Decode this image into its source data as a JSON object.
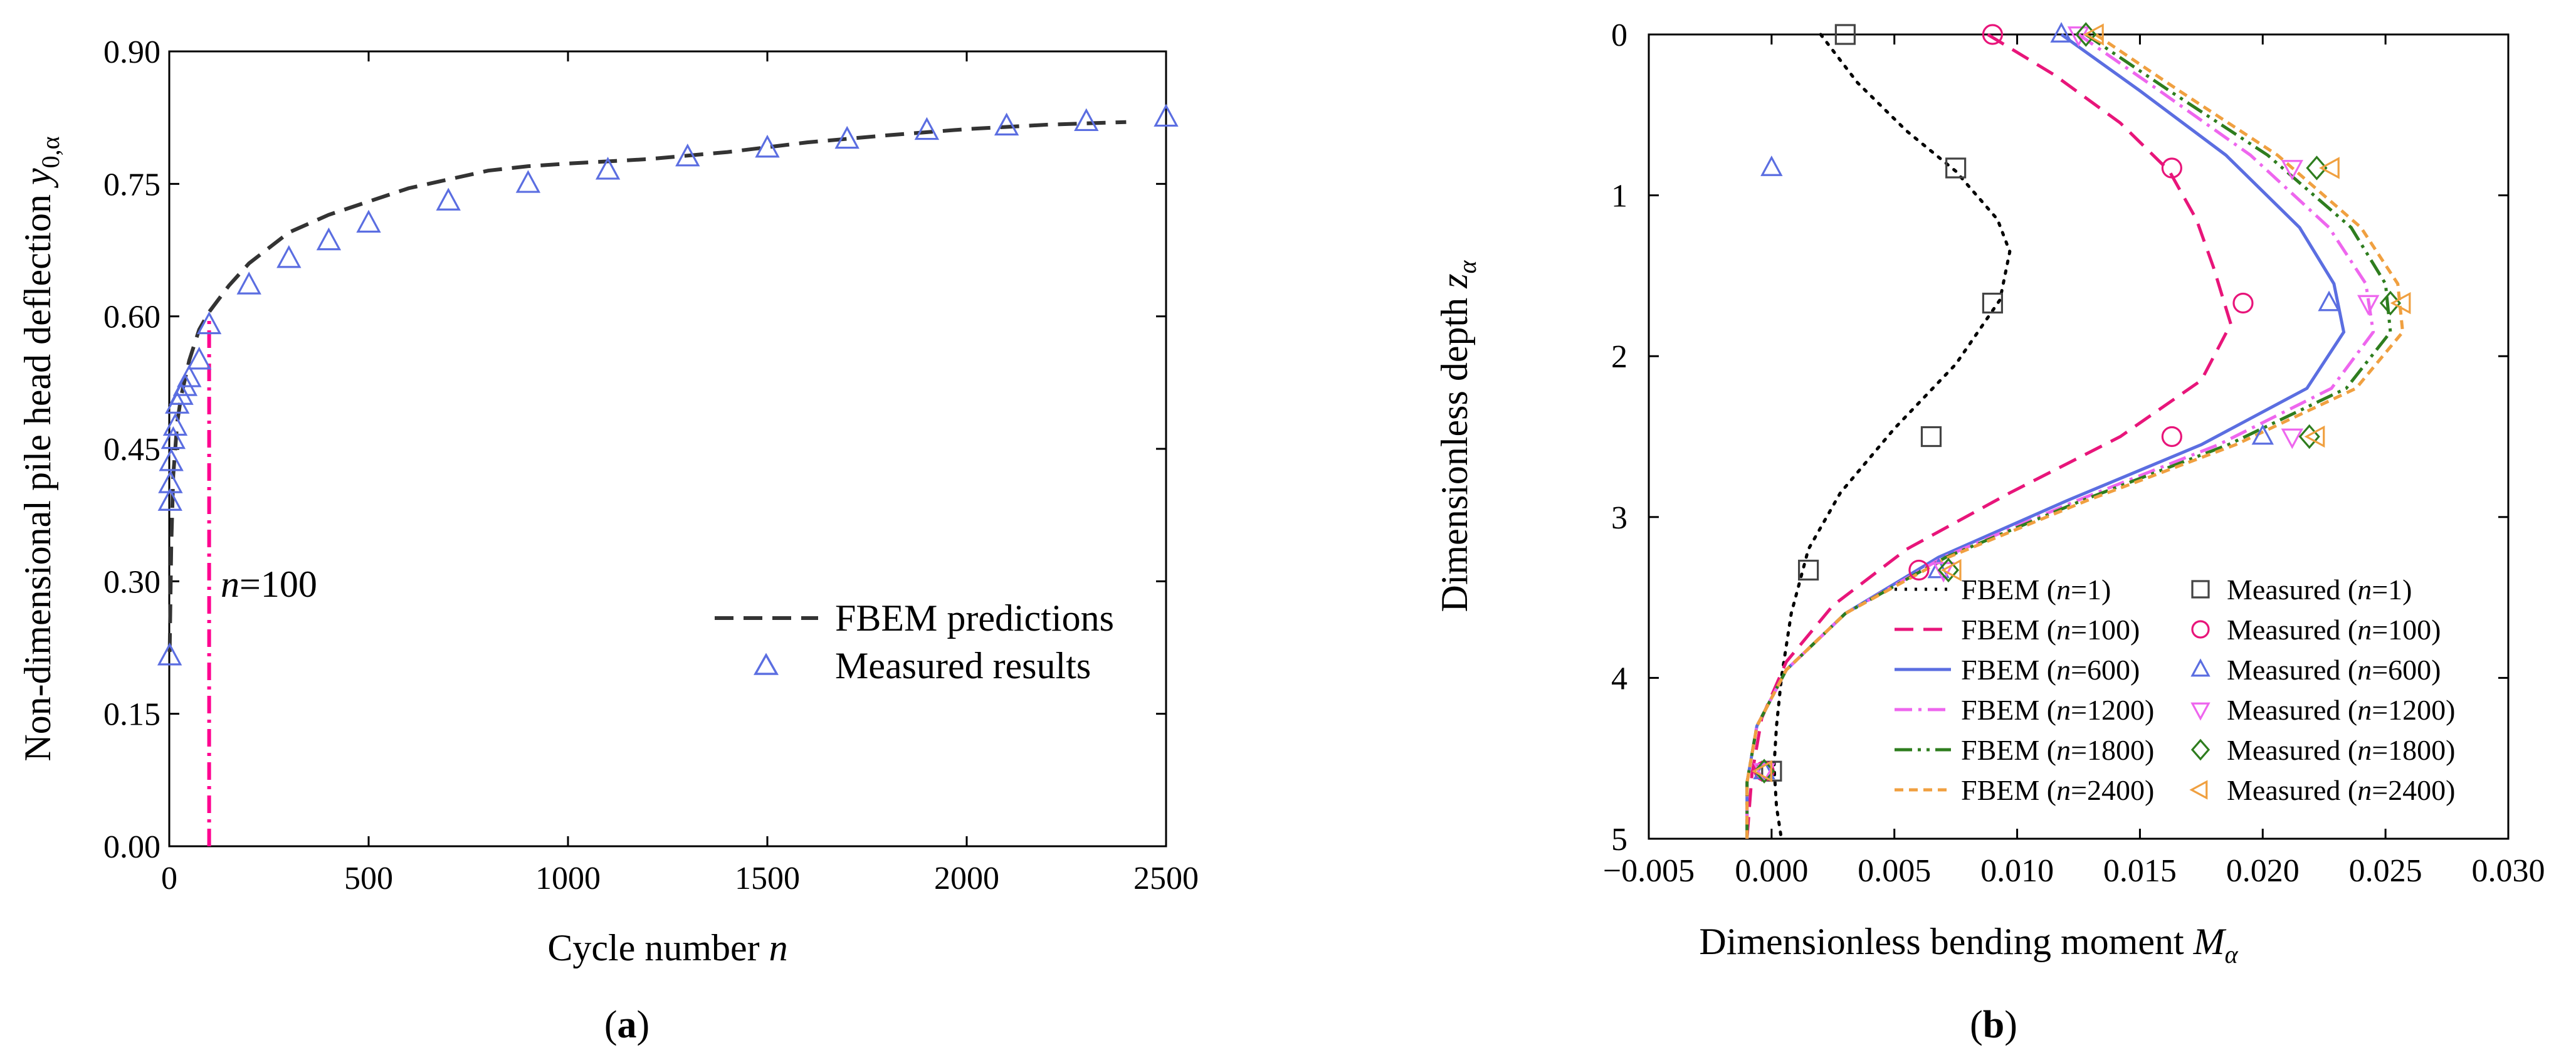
{
  "panel_labels": {
    "a": "(a)",
    "a_open": "(",
    "a_letter": "a",
    "a_close": ")",
    "b": "(b)",
    "b_open": "(",
    "b_letter": "b",
    "b_close": ")"
  },
  "chart_data": [
    {
      "type": "line",
      "panel": "a",
      "title": "",
      "xlabel": "Cycle number n",
      "xlabel_main": "Cycle number ",
      "xlabel_var": "n",
      "ylabel": "Non-dimensional pile head deflection y0,α",
      "ylabel_main": "Non-dimensional pile head deflection ",
      "ylabel_var": "y",
      "ylabel_sub": "0,α",
      "xlim": [
        0,
        2500
      ],
      "ylim": [
        0,
        0.9
      ],
      "xticks": [
        0,
        500,
        1000,
        1500,
        2000,
        2500
      ],
      "xtick_labels": [
        "0",
        "500",
        "1000",
        "1500",
        "2000",
        "2500"
      ],
      "yticks": [
        0,
        0.15,
        0.3,
        0.45,
        0.6,
        0.75,
        0.9
      ],
      "ytick_labels": [
        "0.00",
        "0.15",
        "0.30",
        "0.45",
        "0.60",
        "0.75",
        "0.90"
      ],
      "legend_position": "bottom-right",
      "marker_line": {
        "x": 100,
        "label": "n=100",
        "label_var": "n",
        "label_rest": "=100",
        "color": "#ff0090"
      },
      "series": [
        {
          "name": "FBEM predictions",
          "kind": "line",
          "style": "dashed",
          "color": "#333333",
          "x": [
            1,
            5,
            10,
            20,
            30,
            50,
            75,
            100,
            150,
            200,
            300,
            400,
            500,
            600,
            700,
            800,
            900,
            1000,
            1200,
            1400,
            1600,
            1800,
            2000,
            2200,
            2400
          ],
          "y": [
            0.22,
            0.34,
            0.42,
            0.48,
            0.51,
            0.55,
            0.585,
            0.605,
            0.635,
            0.66,
            0.695,
            0.715,
            0.73,
            0.745,
            0.755,
            0.765,
            0.77,
            0.773,
            0.778,
            0.786,
            0.797,
            0.805,
            0.812,
            0.817,
            0.82
          ]
        },
        {
          "name": "Measured results",
          "kind": "marker",
          "marker": "triangle-up",
          "color": "#5b6ee1",
          "x": [
            1,
            2,
            3,
            5,
            10,
            15,
            20,
            30,
            40,
            50,
            75,
            100,
            200,
            300,
            400,
            500,
            700,
            900,
            1100,
            1300,
            1500,
            1700,
            1900,
            2100,
            2300,
            2500
          ],
          "y": [
            0.215,
            0.39,
            0.41,
            0.435,
            0.46,
            0.475,
            0.5,
            0.51,
            0.52,
            0.53,
            0.55,
            0.59,
            0.635,
            0.665,
            0.685,
            0.705,
            0.73,
            0.75,
            0.765,
            0.78,
            0.79,
            0.8,
            0.81,
            0.815,
            0.82,
            0.825
          ]
        }
      ]
    },
    {
      "type": "line",
      "panel": "b",
      "title": "",
      "xlabel": "Dimensionless bending moment Mα",
      "xlabel_main": "Dimensionless bending moment ",
      "xlabel_var": "M",
      "xlabel_sub": "α",
      "ylabel": "Dimensionless depth zα",
      "ylabel_main": "Dimensionless depth ",
      "ylabel_var": "z",
      "ylabel_sub": "α",
      "xlim": [
        -0.005,
        0.03
      ],
      "ylim": [
        0,
        5
      ],
      "y_inverted": true,
      "xticks": [
        -0.005,
        0,
        0.005,
        0.01,
        0.015,
        0.02,
        0.025,
        0.03
      ],
      "xtick_labels": [
        "−0.005",
        "0.000",
        "0.005",
        "0.010",
        "0.015",
        "0.020",
        "0.025",
        "0.030"
      ],
      "yticks": [
        0,
        1,
        2,
        3,
        4,
        5
      ],
      "ytick_labels": [
        "0",
        "1",
        "2",
        "3",
        "4",
        "5"
      ],
      "legend_position": "bottom-right",
      "legend_font": "",
      "series": [
        {
          "name": "FBEM (n=1)",
          "legend_pre": "FBEM (",
          "legend_var": "n",
          "legend_post": "=1)",
          "kind": "line",
          "style": "dotted",
          "color": "#000000",
          "x": [
            0.002,
            0.0035,
            0.0055,
            0.0075,
            0.0092,
            0.0097,
            0.0093,
            0.0075,
            0.005,
            0.0028,
            0.0015,
            0.0008,
            0.0004,
            0.0002,
            0.0001,
            0.0002,
            0.0004
          ],
          "z": [
            0,
            0.3,
            0.6,
            0.85,
            1.15,
            1.35,
            1.65,
            2.05,
            2.45,
            2.85,
            3.2,
            3.6,
            4.0,
            4.3,
            4.55,
            4.8,
            5.0
          ]
        },
        {
          "name": "FBEM (n=100)",
          "legend_pre": "FBEM (",
          "legend_var": "n",
          "legend_post": "=100)",
          "kind": "line",
          "style": "dashed",
          "color": "#e8157a",
          "x": [
            0.0088,
            0.0115,
            0.0142,
            0.0162,
            0.0173,
            0.018,
            0.0187,
            0.0175,
            0.0142,
            0.0097,
            0.0055,
            0.0025,
            0.0006,
            -0.0004,
            -0.0008,
            -0.001
          ],
          "z": [
            0,
            0.25,
            0.55,
            0.85,
            1.15,
            1.45,
            1.8,
            2.15,
            2.5,
            2.85,
            3.2,
            3.55,
            3.9,
            4.25,
            4.6,
            5.0
          ]
        },
        {
          "name": "FBEM (n=600)",
          "legend_pre": "FBEM (",
          "legend_var": "n",
          "legend_post": "=600)",
          "kind": "line",
          "style": "solid",
          "color": "#5b6ee1",
          "x": [
            0.0118,
            0.015,
            0.0185,
            0.0215,
            0.0229,
            0.0233,
            0.0218,
            0.0175,
            0.012,
            0.0068,
            0.003,
            0.0006,
            -0.0006,
            -0.001,
            -0.001
          ],
          "z": [
            0,
            0.35,
            0.75,
            1.2,
            1.55,
            1.85,
            2.2,
            2.55,
            2.9,
            3.25,
            3.6,
            3.95,
            4.3,
            4.65,
            5.0
          ]
        },
        {
          "name": "FBEM (n=1200)",
          "legend_pre": "FBEM (",
          "legend_var": "n",
          "legend_post": "=1200)",
          "kind": "line",
          "style": "dashdot",
          "color": "#ee66ee",
          "x": [
            0.0125,
            0.0158,
            0.0195,
            0.0227,
            0.0242,
            0.0245,
            0.0228,
            0.0182,
            0.0124,
            0.007,
            0.003,
            0.0006,
            -0.0006,
            -0.001,
            -0.001
          ],
          "z": [
            0,
            0.35,
            0.75,
            1.2,
            1.55,
            1.85,
            2.2,
            2.55,
            2.9,
            3.25,
            3.6,
            3.95,
            4.3,
            4.65,
            5.0
          ]
        },
        {
          "name": "FBEM (n=1800)",
          "legend_pre": "FBEM (",
          "legend_var": "n",
          "legend_post": "=1800)",
          "kind": "line",
          "style": "dashdotdot",
          "color": "#2e7d1e",
          "x": [
            0.0128,
            0.0162,
            0.0202,
            0.0236,
            0.025,
            0.0252,
            0.0234,
            0.0186,
            0.0126,
            0.0071,
            0.003,
            0.0006,
            -0.0006,
            -0.001,
            -0.001
          ],
          "z": [
            0,
            0.35,
            0.75,
            1.2,
            1.55,
            1.85,
            2.2,
            2.55,
            2.9,
            3.25,
            3.6,
            3.95,
            4.3,
            4.65,
            5.0
          ]
        },
        {
          "name": "FBEM (n=2400)",
          "legend_pre": "FBEM (",
          "legend_var": "n",
          "legend_post": "=2400)",
          "kind": "line",
          "style": "shortdash",
          "color": "#f0a040",
          "x": [
            0.0132,
            0.0166,
            0.0206,
            0.024,
            0.0255,
            0.0257,
            0.0238,
            0.0189,
            0.0128,
            0.0072,
            0.003,
            0.0006,
            -0.0006,
            -0.001,
            -0.001
          ],
          "z": [
            0,
            0.35,
            0.75,
            1.2,
            1.55,
            1.85,
            2.2,
            2.55,
            2.9,
            3.25,
            3.6,
            3.95,
            4.3,
            4.65,
            5.0
          ]
        },
        {
          "name": "Measured (n=1)",
          "legend_pre": "Measured (",
          "legend_var": "n",
          "legend_post": "=1)",
          "kind": "marker",
          "marker": "square",
          "color": "#444444",
          "x": [
            0.003,
            0.0075,
            0.009,
            0.0065,
            0.0015,
            0.0
          ],
          "z": [
            0,
            0.83,
            1.67,
            2.5,
            3.33,
            4.58
          ]
        },
        {
          "name": "Measured (n=100)",
          "legend_pre": "Measured (",
          "legend_var": "n",
          "legend_post": "=100)",
          "kind": "marker",
          "marker": "circle",
          "color": "#e8157a",
          "x": [
            0.009,
            0.0163,
            0.0192,
            0.0163,
            0.006,
            -0.0003
          ],
          "z": [
            0,
            0.83,
            1.67,
            2.5,
            3.33,
            4.58
          ]
        },
        {
          "name": "Measured (n=600)",
          "legend_pre": "Measured (",
          "legend_var": "n",
          "legend_post": "=600)",
          "kind": "marker",
          "marker": "triangle-up",
          "color": "#5b6ee1",
          "x": [
            0.0118,
            0.0,
            0.0227,
            0.02,
            0.0068,
            -0.0003
          ],
          "z": [
            0,
            0.83,
            1.67,
            2.5,
            3.33,
            4.58
          ]
        },
        {
          "name": "Measured (n=1200)",
          "legend_pre": "Measured (",
          "legend_var": "n",
          "legend_post": "=1200)",
          "kind": "marker",
          "marker": "triangle-down",
          "color": "#ee66ee",
          "x": [
            0.0125,
            0.0212,
            0.0243,
            0.0212,
            0.007,
            -0.0003
          ],
          "z": [
            0,
            0.83,
            1.67,
            2.5,
            3.33,
            4.58
          ]
        },
        {
          "name": "Measured (n=1800)",
          "legend_pre": "Measured (",
          "legend_var": "n",
          "legend_post": "=1800)",
          "kind": "marker",
          "marker": "diamond",
          "color": "#2e7d1e",
          "x": [
            0.0128,
            0.0222,
            0.0252,
            0.0219,
            0.0072,
            -0.0003
          ],
          "z": [
            0,
            0.83,
            1.67,
            2.5,
            3.33,
            4.58
          ]
        },
        {
          "name": "Measured (n=2400)",
          "legend_pre": "Measured (",
          "legend_var": "n",
          "legend_post": "=2400)",
          "kind": "marker",
          "marker": "triangle-left",
          "color": "#f0a040",
          "x": [
            0.0132,
            0.0228,
            0.0257,
            0.0222,
            0.0074,
            -0.0003
          ],
          "z": [
            0,
            0.83,
            1.67,
            2.5,
            3.33,
            4.58
          ]
        }
      ]
    }
  ]
}
